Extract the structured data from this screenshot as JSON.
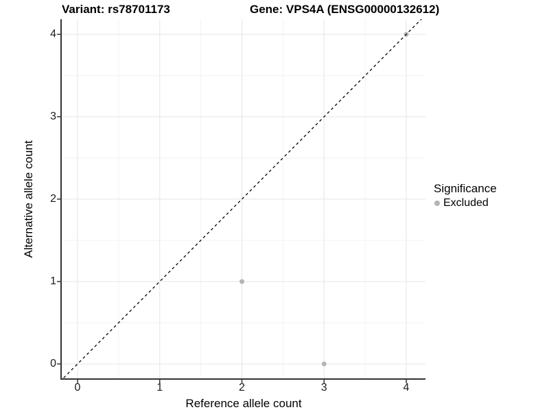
{
  "titles": {
    "left": "Variant: rs78701173",
    "right": "Gene: VPS4A (ENSG00000132612)"
  },
  "chart_data": {
    "type": "scatter",
    "title": "Variant: rs78701173   Gene: VPS4A (ENSG00000132612)",
    "xlabel": "Reference allele count",
    "ylabel": "Alternative allele count",
    "xlim": [
      -0.19,
      4.23
    ],
    "ylim": [
      -0.18,
      4.18
    ],
    "xticks": [
      0,
      1,
      2,
      3,
      4
    ],
    "yticks": [
      0,
      1,
      2,
      3,
      4
    ],
    "minor_xticks": [
      0.5,
      1.5,
      2.5,
      3.5
    ],
    "minor_yticks": [
      0.5,
      1.5,
      2.5,
      3.5
    ],
    "grid": true,
    "series": [
      {
        "name": "Excluded",
        "color": "#b5b5b5",
        "points": [
          [
            2,
            1
          ],
          [
            3,
            0
          ],
          [
            4,
            4
          ]
        ]
      }
    ],
    "abline": {
      "slope": 1,
      "intercept": 0,
      "style": "dashed",
      "color": "#000000"
    },
    "legend": {
      "position": "right",
      "title": "Significance",
      "entries": [
        {
          "label": "Excluded",
          "color": "#b5b5b5"
        }
      ]
    },
    "style": {
      "major_grid": "#e5e5e5",
      "minor_grid": "#f2f2f2",
      "axis_line": "#333333",
      "tick_mark": "#333333",
      "point": "#b5b5b5",
      "text": "#000000"
    }
  }
}
